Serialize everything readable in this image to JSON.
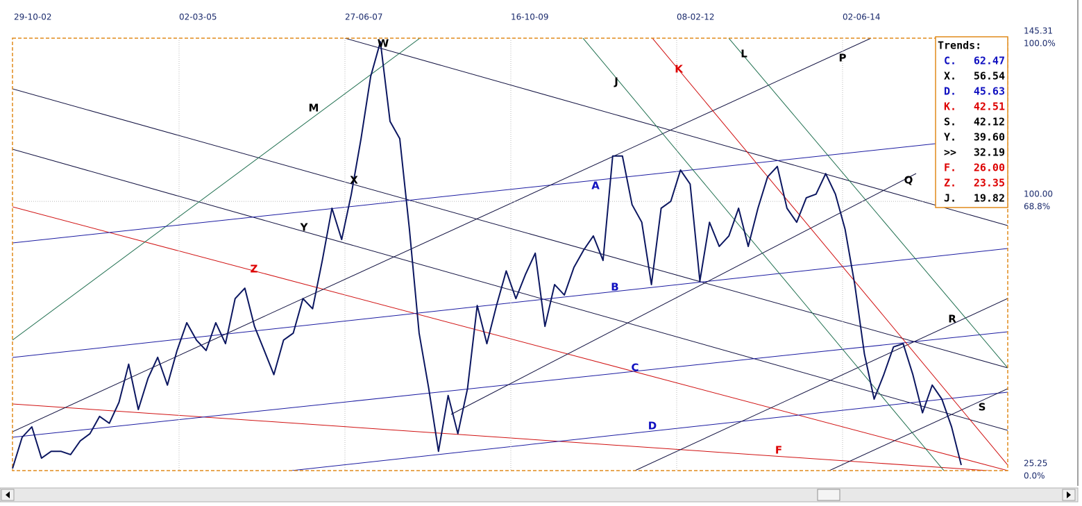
{
  "header": {
    "dates": [
      "29-10-02",
      "02-03-05",
      "27-06-07",
      "16-10-09",
      "08-02-12",
      "02-06-14"
    ]
  },
  "price": {
    "color": "#0b1660",
    "ylim": [
      25.25,
      145.31
    ],
    "yticks": [
      145.31,
      {
        "value": 100,
        "label": "100.00"
      },
      25.25
    ],
    "percent_labels": [
      "100.0%",
      "68.8%",
      "0.0%"
    ],
    "values": [
      25.8,
      34.5,
      37.4,
      28.7,
      30.6,
      30.6,
      29.7,
      33.5,
      35.5,
      40.3,
      38.4,
      44.2,
      54.8,
      42.2,
      50.9,
      56.7,
      49.0,
      58.6,
      66.3,
      61.5,
      58.6,
      66.3,
      60.5,
      73.0,
      75.9,
      65.3,
      58.6,
      51.9,
      61.5,
      63.4,
      73.0,
      70.2,
      83.6,
      98.1,
      89.4,
      102.0,
      117.4,
      134.7,
      144.3,
      122.2,
      117.4,
      92.3,
      63.4,
      48.0,
      30.6,
      46.1,
      35.5,
      48.0,
      71.1,
      60.5,
      71.1,
      80.7,
      73.0,
      79.8,
      85.6,
      65.3,
      76.9,
      74.0,
      81.7,
      86.5,
      90.4,
      83.6,
      112.6,
      112.6,
      99.1,
      94.2,
      76.9,
      98.1,
      100.0,
      108.7,
      104.8,
      77.9,
      94.2,
      87.5,
      90.4,
      98.1,
      87.5,
      98.1,
      106.8,
      109.7,
      98.1,
      94.2,
      101.0,
      102.0,
      107.7,
      102.0,
      92.3,
      76.9,
      57.6,
      45.1,
      51.9,
      59.6,
      60.5,
      51.9,
      41.3,
      49.0,
      45.1,
      37.4,
      26.8
    ]
  },
  "trend_labels": [
    {
      "text": "W",
      "color": "#000000"
    },
    {
      "text": "M",
      "color": "#000000"
    },
    {
      "text": "X",
      "color": "#000000"
    },
    {
      "text": "Y",
      "color": "#000000"
    },
    {
      "text": "Z",
      "color": "#dd0000"
    },
    {
      "text": "J",
      "color": "#000000"
    },
    {
      "text": "K",
      "color": "#dd0000"
    },
    {
      "text": "L",
      "color": "#000000"
    },
    {
      "text": "P",
      "color": "#000000"
    },
    {
      "text": "A",
      "color": "#1010c0"
    },
    {
      "text": "B",
      "color": "#1010c0"
    },
    {
      "text": "C",
      "color": "#1010c0"
    },
    {
      "text": "D",
      "color": "#1010c0"
    },
    {
      "text": "F",
      "color": "#dd0000"
    },
    {
      "text": "Q",
      "color": "#000000"
    },
    {
      "text": "R",
      "color": "#000000"
    },
    {
      "text": "S",
      "color": "#000000"
    }
  ],
  "trends_box": {
    "title": "Trends:",
    "items": [
      {
        "key": "C.",
        "value": "62.47",
        "color": "#1010c0"
      },
      {
        "key": "X.",
        "value": "56.54",
        "color": "#000000"
      },
      {
        "key": "D.",
        "value": "45.63",
        "color": "#1010c0"
      },
      {
        "key": "K.",
        "value": "42.51",
        "color": "#dd0000"
      },
      {
        "key": "S.",
        "value": "42.12",
        "color": "#000000"
      },
      {
        "key": "Y.",
        "value": "39.60",
        "color": "#000000"
      },
      {
        "key": ">>",
        "value": "32.19",
        "color": "#000000"
      },
      {
        "key": "F.",
        "value": "26.00",
        "color": "#dd0000"
      },
      {
        "key": "Z.",
        "value": "23.35",
        "color": "#dd0000"
      },
      {
        "key": "J.",
        "value": "19.82",
        "color": "#000000"
      }
    ]
  }
}
